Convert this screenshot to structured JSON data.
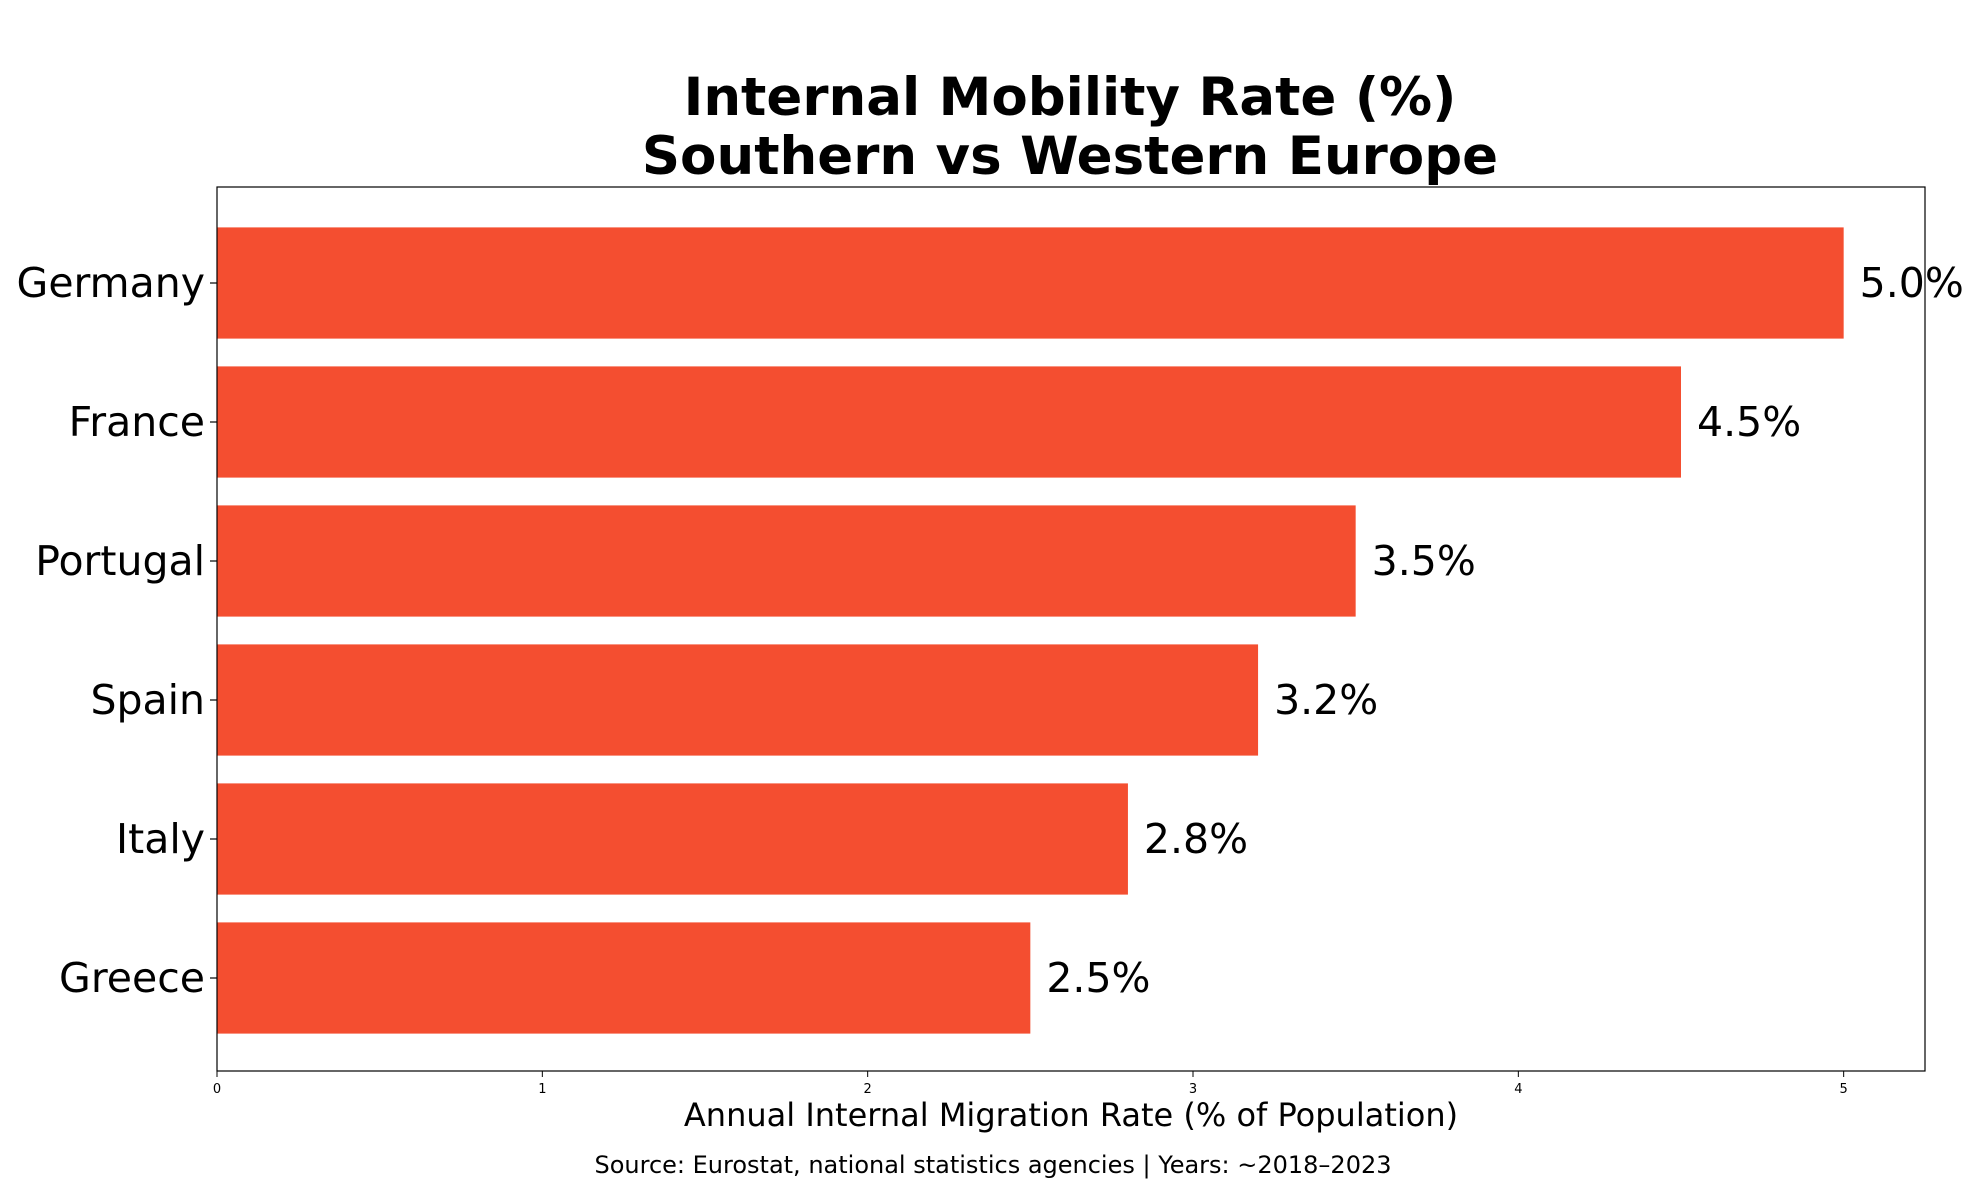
{
  "chart_data": {
    "type": "bar",
    "orientation": "horizontal",
    "title": [
      "Internal Mobility Rate (%)",
      "Southern vs Western Europe"
    ],
    "categories": [
      "Germany",
      "France",
      "Portugal",
      "Spain",
      "Italy",
      "Greece"
    ],
    "values": [
      5.0,
      4.5,
      3.5,
      3.2,
      2.8,
      2.5
    ],
    "value_labels": [
      "5.0%",
      "4.5%",
      "3.5%",
      "3.2%",
      "2.8%",
      "2.5%"
    ],
    "xlabel": "Annual Internal Migration Rate (% of Population)",
    "ylabel": "",
    "xlim": [
      0,
      5.25
    ],
    "xticks": [
      0,
      1,
      2,
      3,
      4,
      5
    ],
    "xtick_labels": [
      "0",
      "1",
      "2",
      "3",
      "4",
      "5"
    ],
    "grid": false,
    "bar_color": "#f44e30",
    "note": "Source: Eurostat, national statistics agencies | Years: ~2018–2023"
  }
}
